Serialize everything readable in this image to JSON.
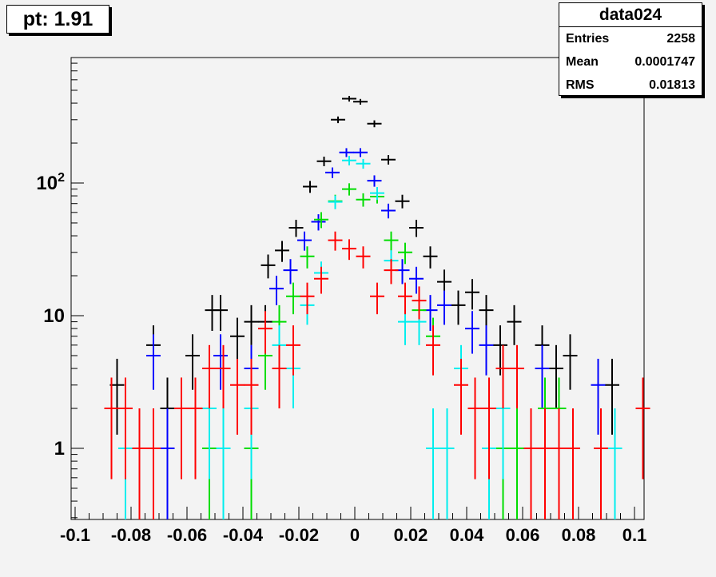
{
  "title": "pt: 1.91",
  "stats": {
    "name": "data024",
    "rows": [
      {
        "label": "Entries",
        "value": "2258"
      },
      {
        "label": "Mean",
        "value": "0.0001747"
      },
      {
        "label": "RMS",
        "value": "0.01813"
      }
    ]
  },
  "chart_data": {
    "type": "scatter",
    "title": "pt: 1.91",
    "xlabel": "",
    "ylabel": "",
    "xlim": [
      -0.1,
      0.105
    ],
    "ylim": [
      0.32,
      900
    ],
    "yscale": "log",
    "grid": false,
    "x_ticks": [
      "-0.1",
      "-0.08",
      "-0.06",
      "-0.04",
      "-0.02",
      "0",
      "0.02",
      "0.04",
      "0.06",
      "0.08",
      "0.1"
    ],
    "y_ticks": [
      "1",
      "10",
      "10^2"
    ],
    "series": [
      {
        "color": "#000000",
        "points": [
          [
            -0.085,
            3
          ],
          [
            -0.072,
            6
          ],
          [
            -0.067,
            2
          ],
          [
            -0.058,
            5
          ],
          [
            -0.051,
            11
          ],
          [
            -0.048,
            11
          ],
          [
            -0.042,
            7
          ],
          [
            -0.037,
            9
          ],
          [
            -0.032,
            9
          ],
          [
            -0.031,
            24
          ],
          [
            -0.026,
            31
          ],
          [
            -0.021,
            46
          ],
          [
            -0.016,
            94
          ],
          [
            -0.011,
            146
          ],
          [
            -0.006,
            300
          ],
          [
            -0.002,
            432
          ],
          [
            0.002,
            410
          ],
          [
            0.007,
            280
          ],
          [
            0.012,
            150
          ],
          [
            0.017,
            73
          ],
          [
            0.022,
            46
          ],
          [
            0.027,
            28
          ],
          [
            0.032,
            18
          ],
          [
            0.037,
            12
          ],
          [
            0.042,
            15
          ],
          [
            0.047,
            11
          ],
          [
            0.052,
            6
          ],
          [
            0.057,
            9
          ],
          [
            0.067,
            6
          ],
          [
            0.072,
            4
          ],
          [
            0.077,
            5
          ],
          [
            0.092,
            3
          ]
        ]
      },
      {
        "color": "#0000ff",
        "points": [
          [
            -0.072,
            5
          ],
          [
            -0.067,
            1
          ],
          [
            -0.048,
            5
          ],
          [
            -0.037,
            4
          ],
          [
            -0.028,
            16
          ],
          [
            -0.023,
            22
          ],
          [
            -0.018,
            37
          ],
          [
            -0.013,
            51
          ],
          [
            -0.008,
            120
          ],
          [
            -0.003,
            170
          ],
          [
            0.002,
            170
          ],
          [
            0.007,
            104
          ],
          [
            0.012,
            62
          ],
          [
            0.017,
            22
          ],
          [
            0.022,
            19
          ],
          [
            0.027,
            11
          ],
          [
            0.032,
            12
          ],
          [
            0.042,
            8
          ],
          [
            0.047,
            6
          ],
          [
            0.067,
            4
          ],
          [
            0.087,
            3
          ]
        ]
      },
      {
        "color": "#00dd00",
        "points": [
          [
            -0.062,
            2
          ],
          [
            -0.052,
            1
          ],
          [
            -0.037,
            1
          ],
          [
            -0.032,
            5
          ],
          [
            -0.027,
            9
          ],
          [
            -0.022,
            14
          ],
          [
            -0.017,
            28
          ],
          [
            -0.012,
            53
          ],
          [
            -0.007,
            73
          ],
          [
            -0.002,
            90
          ],
          [
            0.003,
            75
          ],
          [
            0.008,
            79
          ],
          [
            0.013,
            37
          ],
          [
            0.018,
            30
          ],
          [
            0.023,
            11
          ],
          [
            0.028,
            7
          ],
          [
            0.033,
            1
          ],
          [
            0.048,
            2
          ],
          [
            0.053,
            1
          ],
          [
            0.058,
            1
          ],
          [
            0.068,
            2
          ],
          [
            0.073,
            2
          ]
        ]
      },
      {
        "color": "#00eeee",
        "points": [
          [
            -0.082,
            1
          ],
          [
            -0.057,
            2
          ],
          [
            -0.052,
            2
          ],
          [
            -0.047,
            1
          ],
          [
            -0.037,
            2
          ],
          [
            -0.027,
            6
          ],
          [
            -0.022,
            4
          ],
          [
            -0.017,
            12
          ],
          [
            -0.012,
            21
          ],
          [
            -0.007,
            72
          ],
          [
            -0.002,
            148
          ],
          [
            0.003,
            140
          ],
          [
            0.008,
            84
          ],
          [
            0.013,
            26
          ],
          [
            0.018,
            9
          ],
          [
            0.023,
            9
          ],
          [
            0.028,
            1
          ],
          [
            0.033,
            1
          ],
          [
            0.038,
            4
          ],
          [
            0.043,
            2
          ],
          [
            0.048,
            1
          ],
          [
            0.053,
            2
          ],
          [
            0.063,
            1
          ],
          [
            0.068,
            1
          ],
          [
            0.078,
            1
          ],
          [
            0.093,
            1
          ]
        ]
      },
      {
        "color": "#ff0000",
        "points": [
          [
            -0.087,
            2
          ],
          [
            -0.082,
            2
          ],
          [
            -0.077,
            1
          ],
          [
            -0.072,
            1
          ],
          [
            -0.062,
            2
          ],
          [
            -0.057,
            2
          ],
          [
            -0.052,
            4
          ],
          [
            -0.047,
            4
          ],
          [
            -0.042,
            3
          ],
          [
            -0.037,
            3
          ],
          [
            -0.032,
            8
          ],
          [
            -0.027,
            4
          ],
          [
            -0.022,
            6
          ],
          [
            -0.017,
            14
          ],
          [
            -0.012,
            19
          ],
          [
            -0.007,
            37
          ],
          [
            -0.002,
            32
          ],
          [
            0.003,
            28
          ],
          [
            0.008,
            14
          ],
          [
            0.013,
            22
          ],
          [
            0.018,
            14
          ],
          [
            0.023,
            13
          ],
          [
            0.028,
            6
          ],
          [
            0.038,
            3
          ],
          [
            0.043,
            2
          ],
          [
            0.048,
            2
          ],
          [
            0.053,
            4
          ],
          [
            0.058,
            4
          ],
          [
            0.063,
            1
          ],
          [
            0.068,
            1
          ],
          [
            0.073,
            1
          ],
          [
            0.078,
            1
          ],
          [
            0.088,
            1
          ],
          [
            0.103,
            2
          ]
        ]
      }
    ]
  }
}
